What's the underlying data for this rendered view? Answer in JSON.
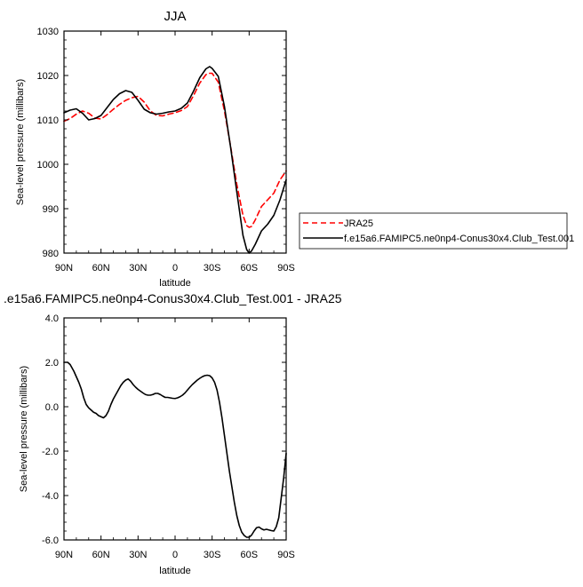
{
  "chart_data": [
    {
      "type": "line",
      "title": "JJA",
      "xlabel": "latitude",
      "ylabel": "Sea-level pressure (millibars)",
      "xlim": [
        90,
        -90
      ],
      "ylim": [
        980,
        1030
      ],
      "x_ticks": [
        90,
        60,
        30,
        0,
        -30,
        -60,
        -90
      ],
      "x_tick_labels": [
        "90N",
        "60N",
        "30N",
        "0",
        "30S",
        "60S",
        "90S"
      ],
      "y_ticks": [
        980,
        990,
        1000,
        1010,
        1020,
        1030
      ],
      "y_tick_labels": [
        "980",
        "990",
        "1000",
        "1010",
        "1020",
        "1030"
      ],
      "legend_position": "right",
      "series": [
        {
          "name": "JRA25",
          "color": "#ff0000",
          "style": "dashed",
          "x": [
            90,
            85,
            80,
            75,
            70,
            65,
            60,
            55,
            50,
            45,
            40,
            35,
            30,
            25,
            20,
            15,
            10,
            5,
            0,
            -5,
            -10,
            -15,
            -20,
            -25,
            -28,
            -30,
            -35,
            -40,
            -45,
            -50,
            -55,
            -58,
            -60,
            -62,
            -65,
            -70,
            -75,
            -80,
            -85,
            -90
          ],
          "values": [
            1009.7,
            1010.3,
            1011.3,
            1012.0,
            1011.5,
            1010.4,
            1010.2,
            1011.2,
            1012.4,
            1013.5,
            1014.4,
            1015.0,
            1015.3,
            1014.0,
            1012.0,
            1011.0,
            1010.9,
            1011.3,
            1011.6,
            1012.1,
            1013.0,
            1015.5,
            1018.3,
            1020.2,
            1020.5,
            1020.5,
            1018.5,
            1012.0,
            1004.0,
            995.5,
            988.5,
            986.2,
            985.8,
            986.0,
            987.5,
            990.5,
            992.0,
            993.5,
            996.5,
            998.5
          ]
        },
        {
          "name": "f.e15a6.FAMIPC5.ne0np4-Conus30x4.Club_Test.001",
          "color": "#000000",
          "style": "solid",
          "x": [
            90,
            85,
            80,
            75,
            70,
            65,
            60,
            55,
            50,
            45,
            40,
            35,
            30,
            25,
            20,
            15,
            10,
            5,
            0,
            -5,
            -10,
            -15,
            -20,
            -25,
            -28,
            -30,
            -35,
            -40,
            -45,
            -50,
            -55,
            -58,
            -60,
            -62,
            -65,
            -70,
            -75,
            -80,
            -85,
            -90
          ],
          "values": [
            1011.6,
            1012.2,
            1012.5,
            1011.5,
            1010.0,
            1010.3,
            1011.0,
            1012.8,
            1014.6,
            1015.9,
            1016.6,
            1016.2,
            1014.4,
            1012.4,
            1011.6,
            1011.3,
            1011.5,
            1011.8,
            1012.0,
            1012.6,
            1013.8,
            1016.5,
            1019.5,
            1021.5,
            1022.0,
            1021.6,
            1019.8,
            1013.0,
            1003.8,
            993.8,
            984.0,
            980.8,
            980.0,
            980.5,
            982.0,
            985.0,
            986.5,
            988.5,
            992.0,
            996.5
          ]
        }
      ]
    },
    {
      "type": "line",
      "title": ".e15a6.FAMIPC5.ne0np4-Conus30x4.Club_Test.001 - JRA25",
      "xlabel": "latitude",
      "ylabel": "Sea-level pressure (millibars)",
      "xlim": [
        90,
        -90
      ],
      "ylim": [
        -6,
        4
      ],
      "x_ticks": [
        90,
        60,
        30,
        0,
        -30,
        -60,
        -90
      ],
      "x_tick_labels": [
        "90N",
        "60N",
        "30N",
        "0",
        "30S",
        "60S",
        "90S"
      ],
      "y_ticks": [
        -6,
        -4,
        -2,
        0,
        2,
        4
      ],
      "y_tick_labels": [
        "-6.0",
        "-4.0",
        "-2.0",
        "0.0",
        "2.0",
        "4.0"
      ],
      "series": [
        {
          "color": "#000000",
          "style": "solid",
          "x": [
            90,
            87,
            85,
            82,
            80,
            78,
            76,
            74,
            72,
            70,
            68,
            66,
            64,
            62,
            60,
            58,
            56,
            54,
            52,
            50,
            48,
            46,
            44,
            42,
            40,
            38,
            36,
            34,
            32,
            30,
            28,
            26,
            24,
            22,
            20,
            18,
            16,
            14,
            12,
            10,
            8,
            6,
            4,
            2,
            0,
            -2,
            -4,
            -6,
            -8,
            -10,
            -12,
            -14,
            -16,
            -18,
            -20,
            -22,
            -24,
            -26,
            -28,
            -30,
            -32,
            -34,
            -36,
            -38,
            -40,
            -42,
            -44,
            -46,
            -48,
            -50,
            -52,
            -54,
            -56,
            -58,
            -60,
            -62,
            -64,
            -66,
            -68,
            -70,
            -72,
            -74,
            -76,
            -78,
            -80,
            -82,
            -84,
            -86,
            -88,
            -90
          ],
          "values": [
            2.0,
            2.0,
            1.9,
            1.6,
            1.35,
            1.1,
            0.8,
            0.4,
            0.1,
            -0.05,
            -0.15,
            -0.25,
            -0.3,
            -0.4,
            -0.45,
            -0.5,
            -0.4,
            -0.2,
            0.1,
            0.35,
            0.55,
            0.75,
            0.95,
            1.1,
            1.2,
            1.25,
            1.15,
            1.0,
            0.88,
            0.78,
            0.7,
            0.62,
            0.55,
            0.52,
            0.52,
            0.55,
            0.6,
            0.6,
            0.55,
            0.48,
            0.42,
            0.42,
            0.4,
            0.38,
            0.37,
            0.4,
            0.45,
            0.52,
            0.62,
            0.75,
            0.88,
            1.0,
            1.1,
            1.2,
            1.28,
            1.35,
            1.4,
            1.42,
            1.4,
            1.3,
            1.1,
            0.75,
            0.2,
            -0.5,
            -1.3,
            -2.1,
            -2.9,
            -3.6,
            -4.3,
            -4.9,
            -5.35,
            -5.65,
            -5.8,
            -5.88,
            -5.88,
            -5.78,
            -5.6,
            -5.45,
            -5.42,
            -5.5,
            -5.55,
            -5.52,
            -5.55,
            -5.58,
            -5.6,
            -5.4,
            -5.0,
            -4.1,
            -3.2,
            -2.1
          ]
        }
      ]
    }
  ]
}
